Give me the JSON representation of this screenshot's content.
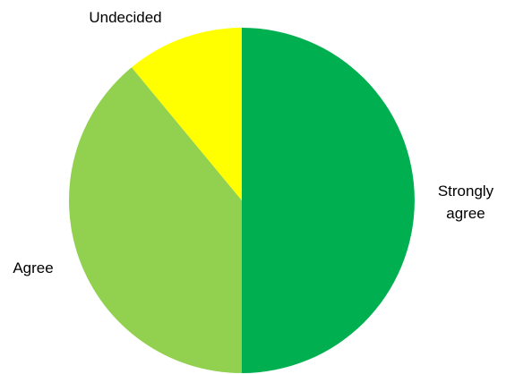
{
  "chart_data": {
    "type": "pie",
    "title": "",
    "categories": [
      "Strongly agree",
      "Agree",
      "Undecided"
    ],
    "values": [
      50,
      39,
      11
    ],
    "colors": [
      "#00B050",
      "#92D050",
      "#FFFF00"
    ],
    "labels": [
      {
        "lines": [
          "Strongly",
          "agree"
        ]
      },
      {
        "lines": [
          "Agree"
        ]
      },
      {
        "lines": [
          "Undecided"
        ]
      }
    ],
    "start": "top",
    "direction": "clockwise",
    "legend": "none"
  }
}
